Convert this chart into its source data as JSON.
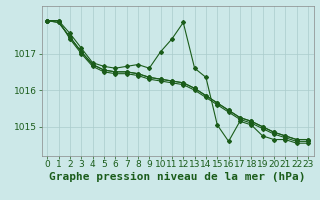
{
  "background_color": "#cce8e8",
  "grid_color": "#aacccc",
  "line_color": "#1a5c1a",
  "xlabel": "Graphe pression niveau de la mer (hPa)",
  "xlabel_fontsize": 8,
  "tick_fontsize": 6.5,
  "xlim": [
    -0.5,
    23.5
  ],
  "ylim": [
    1014.2,
    1018.3
  ],
  "yticks": [
    1015,
    1016,
    1017
  ],
  "xticks": [
    0,
    1,
    2,
    3,
    4,
    5,
    6,
    7,
    8,
    9,
    10,
    11,
    12,
    13,
    14,
    15,
    16,
    17,
    18,
    19,
    20,
    21,
    22,
    23
  ],
  "series1": [
    1017.9,
    1017.9,
    1017.55,
    1017.15,
    1016.75,
    1016.65,
    1016.6,
    1016.65,
    1016.7,
    1016.6,
    1017.05,
    1017.4,
    1017.85,
    1016.6,
    1016.35,
    1015.05,
    1014.6,
    1015.15,
    1015.05,
    1014.75,
    1014.65,
    1014.65,
    1014.55,
    1014.55
  ],
  "series2": [
    1017.9,
    1017.9,
    1017.4,
    1017.0,
    1016.65,
    1016.5,
    1016.45,
    1016.45,
    1016.4,
    1016.3,
    1016.25,
    1016.2,
    1016.15,
    1016.0,
    1015.8,
    1015.6,
    1015.4,
    1015.2,
    1015.1,
    1014.95,
    1014.8,
    1014.7,
    1014.6,
    1014.6
  ],
  "series3": [
    1017.9,
    1017.85,
    1017.45,
    1017.05,
    1016.7,
    1016.55,
    1016.5,
    1016.5,
    1016.45,
    1016.35,
    1016.3,
    1016.25,
    1016.2,
    1016.05,
    1015.85,
    1015.65,
    1015.45,
    1015.25,
    1015.15,
    1015.0,
    1014.85,
    1014.75,
    1014.65,
    1014.65
  ],
  "series4": [
    1017.9,
    1017.85,
    1017.45,
    1017.05,
    1016.7,
    1016.55,
    1016.5,
    1016.5,
    1016.45,
    1016.35,
    1016.3,
    1016.25,
    1016.2,
    1016.05,
    1015.85,
    1015.65,
    1015.45,
    1015.25,
    1015.15,
    1015.0,
    1014.85,
    1014.75,
    1014.65,
    1014.65
  ]
}
